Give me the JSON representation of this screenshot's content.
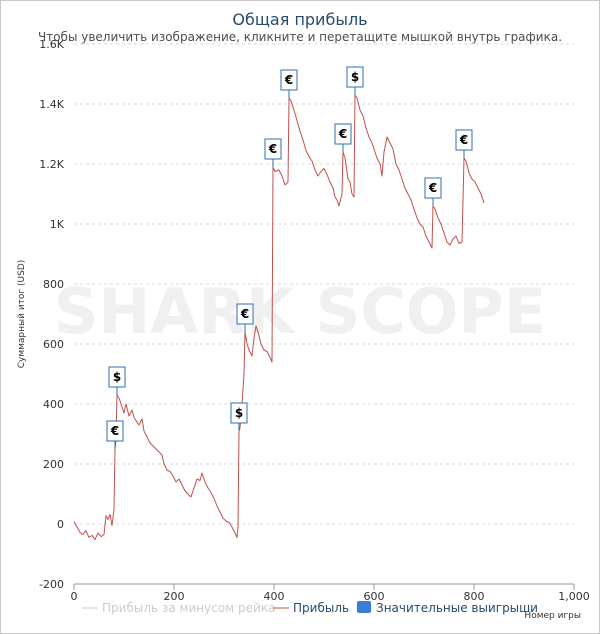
{
  "chart_data": {
    "type": "line",
    "title": "Общая прибыль",
    "subtitle": "Чтобы увеличить изображение, кликните и перетащите мышкой внутрь графика.",
    "xlabel": "Номер игры",
    "ylabel": "Суммарный итог (USD)",
    "xlim": [
      0,
      1000
    ],
    "ylim": [
      -200,
      1600
    ],
    "x_ticks": [
      "0",
      "200",
      "400",
      "600",
      "800",
      "1,000"
    ],
    "y_ticks": [
      "-200",
      "0",
      "200",
      "400",
      "600",
      "800",
      "1K",
      "1.2K",
      "1.4K",
      "1.6K"
    ],
    "grid": true,
    "legend_position": "bottom",
    "watermark": "SHARK SCOPE",
    "legend": [
      {
        "label": "Прибыль за минусом рейка",
        "color": "#cccccc",
        "marker": "line"
      },
      {
        "label": "Прибыль",
        "color": "#c0504d",
        "marker": "line"
      },
      {
        "label": "Значительные выигрыши",
        "color": "#3a7ddb",
        "marker": "box"
      }
    ],
    "series": [
      {
        "name": "Прибыль",
        "color": "#c0504d",
        "points": [
          [
            0,
            8
          ],
          [
            6,
            -10
          ],
          [
            12,
            -28
          ],
          [
            18,
            -35
          ],
          [
            24,
            -22
          ],
          [
            30,
            -45
          ],
          [
            36,
            -38
          ],
          [
            42,
            -52
          ],
          [
            48,
            -30
          ],
          [
            54,
            -42
          ],
          [
            60,
            -35
          ],
          [
            64,
            28
          ],
          [
            68,
            15
          ],
          [
            72,
            32
          ],
          [
            76,
            -5
          ],
          [
            80,
            48
          ],
          [
            82,
            250
          ],
          [
            84,
            280
          ],
          [
            86,
            430
          ],
          [
            90,
            420
          ],
          [
            96,
            390
          ],
          [
            100,
            370
          ],
          [
            104,
            400
          ],
          [
            110,
            360
          ],
          [
            116,
            380
          ],
          [
            120,
            355
          ],
          [
            126,
            340
          ],
          [
            130,
            330
          ],
          [
            136,
            350
          ],
          [
            140,
            310
          ],
          [
            146,
            290
          ],
          [
            152,
            270
          ],
          [
            158,
            260
          ],
          [
            164,
            250
          ],
          [
            170,
            240
          ],
          [
            176,
            230
          ],
          [
            180,
            200
          ],
          [
            186,
            180
          ],
          [
            192,
            175
          ],
          [
            198,
            160
          ],
          [
            204,
            140
          ],
          [
            210,
            150
          ],
          [
            216,
            130
          ],
          [
            222,
            110
          ],
          [
            228,
            100
          ],
          [
            234,
            90
          ],
          [
            240,
            120
          ],
          [
            246,
            150
          ],
          [
            252,
            145
          ],
          [
            256,
            170
          ],
          [
            262,
            140
          ],
          [
            268,
            120
          ],
          [
            274,
            105
          ],
          [
            280,
            85
          ],
          [
            286,
            60
          ],
          [
            292,
            40
          ],
          [
            298,
            20
          ],
          [
            304,
            10
          ],
          [
            310,
            5
          ],
          [
            316,
            -10
          ],
          [
            322,
            -30
          ],
          [
            326,
            -45
          ],
          [
            328,
            -10
          ],
          [
            330,
            310
          ],
          [
            332,
            320
          ],
          [
            336,
            400
          ],
          [
            340,
            500
          ],
          [
            342,
            640
          ],
          [
            346,
            600
          ],
          [
            350,
            580
          ],
          [
            356,
            560
          ],
          [
            360,
            620
          ],
          [
            364,
            660
          ],
          [
            368,
            640
          ],
          [
            374,
            600
          ],
          [
            380,
            580
          ],
          [
            386,
            575
          ],
          [
            392,
            555
          ],
          [
            396,
            540
          ],
          [
            398,
            1190
          ],
          [
            402,
            1175
          ],
          [
            410,
            1180
          ],
          [
            416,
            1160
          ],
          [
            422,
            1130
          ],
          [
            428,
            1140
          ],
          [
            430,
            1420
          ],
          [
            434,
            1410
          ],
          [
            440,
            1380
          ],
          [
            446,
            1345
          ],
          [
            452,
            1310
          ],
          [
            458,
            1280
          ],
          [
            464,
            1245
          ],
          [
            470,
            1225
          ],
          [
            476,
            1210
          ],
          [
            482,
            1180
          ],
          [
            488,
            1160
          ],
          [
            494,
            1175
          ],
          [
            500,
            1185
          ],
          [
            506,
            1165
          ],
          [
            512,
            1140
          ],
          [
            518,
            1120
          ],
          [
            522,
            1090
          ],
          [
            526,
            1080
          ],
          [
            530,
            1060
          ],
          [
            536,
            1100
          ],
          [
            538,
            1240
          ],
          [
            542,
            1220
          ],
          [
            548,
            1150
          ],
          [
            552,
            1140
          ],
          [
            556,
            1100
          ],
          [
            560,
            1090
          ],
          [
            562,
            1430
          ],
          [
            566,
            1420
          ],
          [
            572,
            1380
          ],
          [
            578,
            1360
          ],
          [
            584,
            1320
          ],
          [
            590,
            1290
          ],
          [
            596,
            1270
          ],
          [
            600,
            1250
          ],
          [
            606,
            1220
          ],
          [
            612,
            1200
          ],
          [
            616,
            1160
          ],
          [
            620,
            1240
          ],
          [
            626,
            1290
          ],
          [
            632,
            1270
          ],
          [
            638,
            1250
          ],
          [
            644,
            1200
          ],
          [
            650,
            1180
          ],
          [
            656,
            1150
          ],
          [
            662,
            1120
          ],
          [
            668,
            1100
          ],
          [
            674,
            1080
          ],
          [
            680,
            1050
          ],
          [
            686,
            1020
          ],
          [
            692,
            1000
          ],
          [
            698,
            990
          ],
          [
            704,
            960
          ],
          [
            710,
            940
          ],
          [
            716,
            920
          ],
          [
            718,
            1060
          ],
          [
            722,
            1050
          ],
          [
            728,
            1020
          ],
          [
            734,
            1000
          ],
          [
            740,
            970
          ],
          [
            746,
            940
          ],
          [
            752,
            930
          ],
          [
            758,
            950
          ],
          [
            764,
            960
          ],
          [
            770,
            935
          ],
          [
            776,
            940
          ],
          [
            780,
            1220
          ],
          [
            784,
            1210
          ],
          [
            790,
            1170
          ],
          [
            796,
            1150
          ],
          [
            802,
            1140
          ],
          [
            808,
            1120
          ],
          [
            814,
            1100
          ],
          [
            820,
            1070
          ]
        ]
      }
    ],
    "annotations": [
      {
        "label": "€",
        "x": 82,
        "y": 250
      },
      {
        "label": "$",
        "x": 86,
        "y": 430
      },
      {
        "label": "$",
        "x": 330,
        "y": 310
      },
      {
        "label": "€",
        "x": 342,
        "y": 640
      },
      {
        "label": "€",
        "x": 398,
        "y": 1190
      },
      {
        "label": "€",
        "x": 430,
        "y": 1420
      },
      {
        "label": "€",
        "x": 538,
        "y": 1240
      },
      {
        "label": "$",
        "x": 562,
        "y": 1430
      },
      {
        "label": "€",
        "x": 718,
        "y": 1060
      },
      {
        "label": "€",
        "x": 780,
        "y": 1220
      }
    ]
  }
}
